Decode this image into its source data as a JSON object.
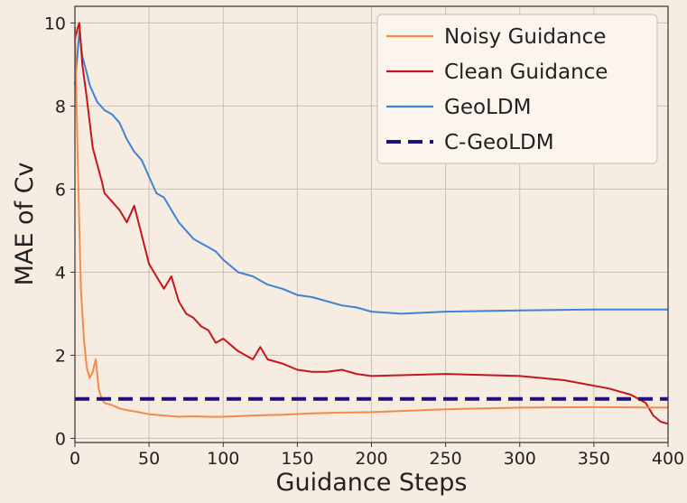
{
  "chart_data": {
    "type": "line",
    "title": "",
    "xlabel": "Guidance Steps",
    "ylabel": "MAE of Cv",
    "xlim": [
      0,
      400
    ],
    "ylim": [
      -0.1,
      10.4
    ],
    "xticks": [
      0,
      50,
      100,
      150,
      200,
      250,
      300,
      350,
      400
    ],
    "yticks": [
      0,
      2,
      4,
      6,
      8,
      10
    ],
    "grid": true,
    "legend_position": "top-right",
    "series": [
      {
        "name": "Noisy Guidance",
        "color": "#f28c4a",
        "style": "solid",
        "x": [
          0,
          2,
          4,
          6,
          8,
          10,
          12,
          14,
          16,
          18,
          20,
          25,
          30,
          35,
          40,
          50,
          60,
          70,
          80,
          90,
          100,
          120,
          140,
          160,
          180,
          200,
          250,
          300,
          350,
          400
        ],
        "y": [
          9.9,
          6.5,
          3.6,
          2.4,
          1.7,
          1.45,
          1.6,
          1.9,
          1.2,
          0.95,
          0.85,
          0.8,
          0.72,
          0.68,
          0.65,
          0.58,
          0.55,
          0.52,
          0.53,
          0.52,
          0.52,
          0.55,
          0.57,
          0.6,
          0.62,
          0.63,
          0.7,
          0.74,
          0.75,
          0.74
        ]
      },
      {
        "name": "Clean Guidance",
        "color": "#c4161c",
        "style": "solid",
        "x": [
          0,
          2,
          3,
          5,
          8,
          10,
          12,
          15,
          18,
          20,
          25,
          30,
          35,
          40,
          45,
          50,
          55,
          60,
          65,
          70,
          75,
          80,
          85,
          90,
          95,
          100,
          110,
          120,
          125,
          130,
          140,
          150,
          160,
          170,
          180,
          190,
          200,
          250,
          300,
          330,
          360,
          375,
          385,
          390,
          395,
          400
        ],
        "y": [
          9.6,
          9.9,
          10.0,
          9.0,
          8.2,
          7.6,
          7.0,
          6.6,
          6.2,
          5.9,
          5.7,
          5.5,
          5.2,
          5.6,
          4.9,
          4.2,
          3.9,
          3.6,
          3.9,
          3.3,
          3.0,
          2.9,
          2.7,
          2.6,
          2.3,
          2.4,
          2.1,
          1.9,
          2.2,
          1.9,
          1.8,
          1.65,
          1.6,
          1.6,
          1.65,
          1.55,
          1.5,
          1.55,
          1.5,
          1.4,
          1.2,
          1.05,
          0.85,
          0.55,
          0.4,
          0.35
        ]
      },
      {
        "name": "GeoLDM",
        "color": "#3d84d6",
        "style": "solid",
        "x": [
          0,
          3,
          5,
          8,
          10,
          15,
          20,
          25,
          30,
          35,
          40,
          45,
          50,
          55,
          60,
          65,
          70,
          75,
          80,
          85,
          90,
          95,
          100,
          110,
          120,
          130,
          140,
          150,
          160,
          170,
          180,
          190,
          200,
          220,
          250,
          300,
          350,
          400
        ],
        "y": [
          8.5,
          9.8,
          9.2,
          8.8,
          8.5,
          8.1,
          7.9,
          7.8,
          7.6,
          7.2,
          6.9,
          6.7,
          6.3,
          5.9,
          5.8,
          5.5,
          5.2,
          5.0,
          4.8,
          4.7,
          4.6,
          4.5,
          4.3,
          4.0,
          3.9,
          3.7,
          3.6,
          3.45,
          3.4,
          3.3,
          3.2,
          3.15,
          3.05,
          3.0,
          3.05,
          3.08,
          3.1,
          3.1
        ]
      },
      {
        "name": "C-GeoLDM",
        "color": "#1f1475",
        "style": "dashed",
        "x": [
          0,
          400
        ],
        "y": [
          0.95,
          0.95
        ]
      }
    ]
  }
}
